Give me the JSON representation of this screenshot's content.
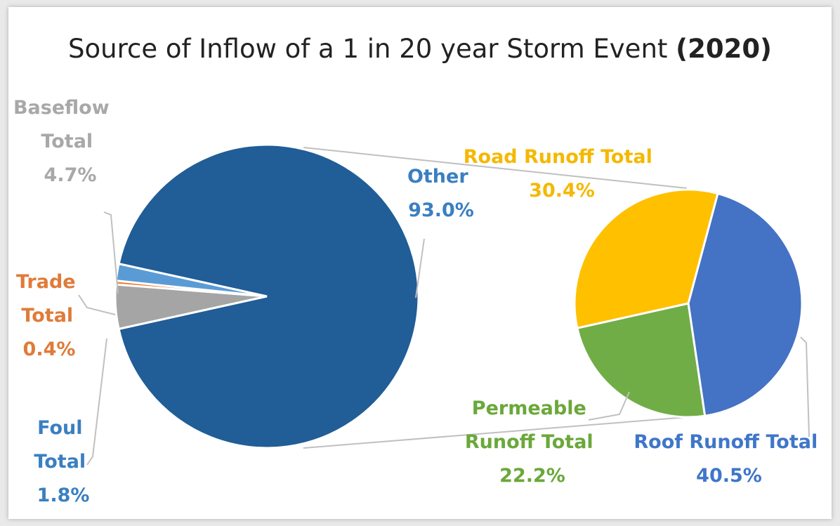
{
  "chart_data": {
    "type": "pie",
    "subtype": "pie-of-pie",
    "title": "Source of Inflow of a 1 in 20 year Storm Event",
    "title_year": "(2020)",
    "main_pie": {
      "slices": [
        {
          "name": "Other",
          "value": 93.0,
          "label_line1": "Other",
          "label_line2": "93.0%",
          "color": "#215d96"
        },
        {
          "name": "Baseflow Total",
          "value": 4.7,
          "label_line1": "Baseflow",
          "label_line2": "Total",
          "label_line3": "4.7%",
          "color": "#a5a5a5"
        },
        {
          "name": "Trade Total",
          "value": 0.4,
          "label_line1": "Trade",
          "label_line2": "Total",
          "label_line3": "0.4%",
          "color": "#ed7d31"
        },
        {
          "name": "Foul Total",
          "value": 1.8,
          "label_line1": "Foul",
          "label_line2": "Total",
          "label_line3": "1.8%",
          "color": "#5b9bd5"
        }
      ]
    },
    "secondary_pie": {
      "slices": [
        {
          "name": "Roof Runoff Total",
          "value": 40.5,
          "label_line1": "Roof Runoff Total",
          "label_line2": "40.5%",
          "color": "#4472c4"
        },
        {
          "name": "Permeable Runoff Total",
          "value": 22.2,
          "label_line1": "Permeable",
          "label_line2": "Runoff Total",
          "label_line3": "22.2%",
          "color": "#70ad47"
        },
        {
          "name": "Road Runoff Total",
          "value": 30.4,
          "label_line1": "Road Runoff Total",
          "label_line2": "30.4%",
          "color": "#ffc000"
        }
      ]
    },
    "legend": "none"
  }
}
